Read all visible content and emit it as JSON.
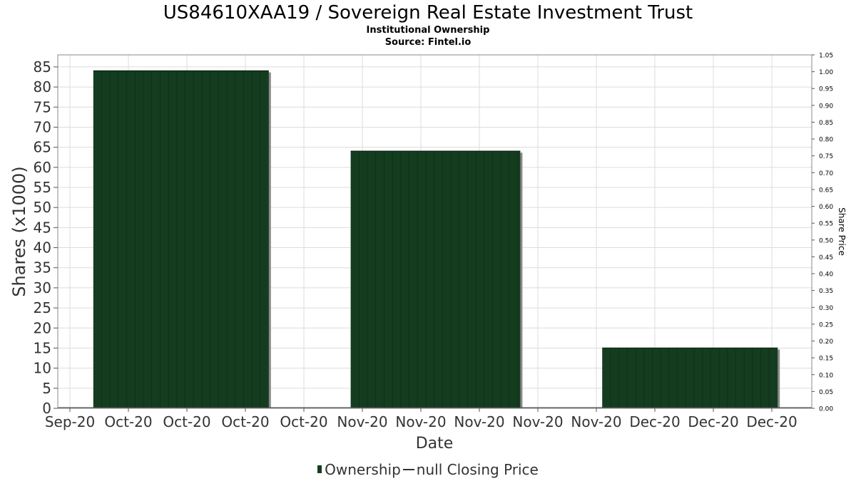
{
  "title": "US84610XAA19 / Sovereign Real Estate Investment Trust",
  "subtitle": "Institutional Ownership",
  "source": "Source: Fintel.io",
  "chart_data": {
    "type": "bar",
    "xlabel": "Date",
    "ylabel": "Shares (x1000)",
    "y2label": "Share Price",
    "ylim": [
      0,
      88
    ],
    "y2lim": [
      0,
      1.05
    ],
    "yticks": [
      0,
      5,
      10,
      15,
      20,
      25,
      30,
      35,
      40,
      45,
      50,
      55,
      60,
      65,
      70,
      75,
      80,
      85
    ],
    "y2ticks": [
      "0.00",
      "0.05",
      "0.10",
      "0.15",
      "0.20",
      "0.25",
      "0.30",
      "0.35",
      "0.40",
      "0.45",
      "0.50",
      "0.55",
      "0.60",
      "0.65",
      "0.70",
      "0.75",
      "0.80",
      "0.85",
      "0.90",
      "0.95",
      "1.00",
      "1.05"
    ],
    "xticks": [
      "Sep-20",
      "Oct-20",
      "Oct-20",
      "Oct-20",
      "Oct-20",
      "Nov-20",
      "Nov-20",
      "Nov-20",
      "Nov-20",
      "Nov-20",
      "Dec-20",
      "Dec-20",
      "Dec-20"
    ],
    "series": [
      {
        "name": "Ownership",
        "color": "#143d1f",
        "bars": [
          {
            "start_tick": 0.4,
            "end_tick": 3.4,
            "value": 84
          },
          {
            "start_tick": 4.8,
            "end_tick": 7.7,
            "value": 64
          },
          {
            "start_tick": 9.1,
            "end_tick": 12.1,
            "value": 15
          }
        ]
      }
    ],
    "grid": true,
    "legend": {
      "position": "bottom",
      "ownership_label": "Ownership",
      "price_label": "null Closing Price"
    }
  }
}
